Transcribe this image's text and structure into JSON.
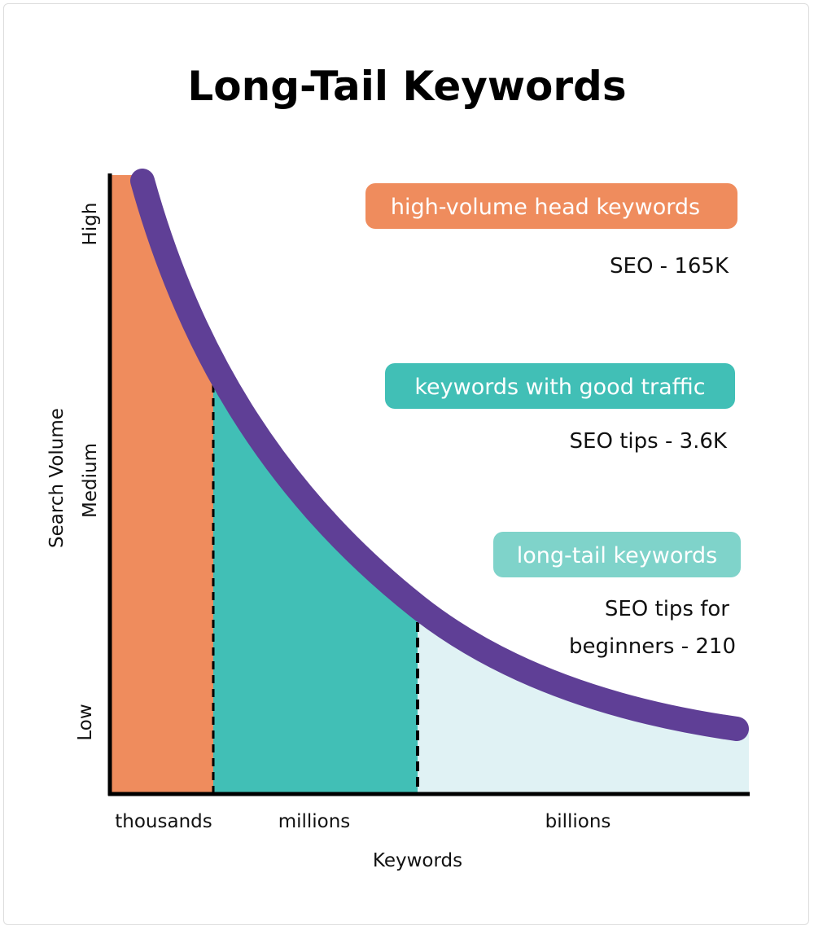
{
  "title": "Long-Tail Keywords",
  "y_axis": {
    "label": "Search Volume",
    "ticks": [
      "High",
      "Medium",
      "Low"
    ]
  },
  "x_axis": {
    "label": "Keywords",
    "ticks": [
      "thousands",
      "millions",
      "billions"
    ]
  },
  "segments": [
    {
      "label": "high-volume head keywords",
      "example": [
        "SEO - 165K"
      ],
      "color": "#ef8c5d"
    },
    {
      "label": "keywords with good traffic",
      "example": [
        "SEO tips - 3.6K"
      ],
      "color": "#41bfb6"
    },
    {
      "label": "long-tail keywords",
      "example": [
        "SEO tips for",
        "beginners - 210"
      ],
      "color": "#7fd3ca"
    }
  ],
  "colors": {
    "curve": "#5f3f96",
    "tail_fill": "#e0f2f4",
    "axis": "#000000"
  }
}
